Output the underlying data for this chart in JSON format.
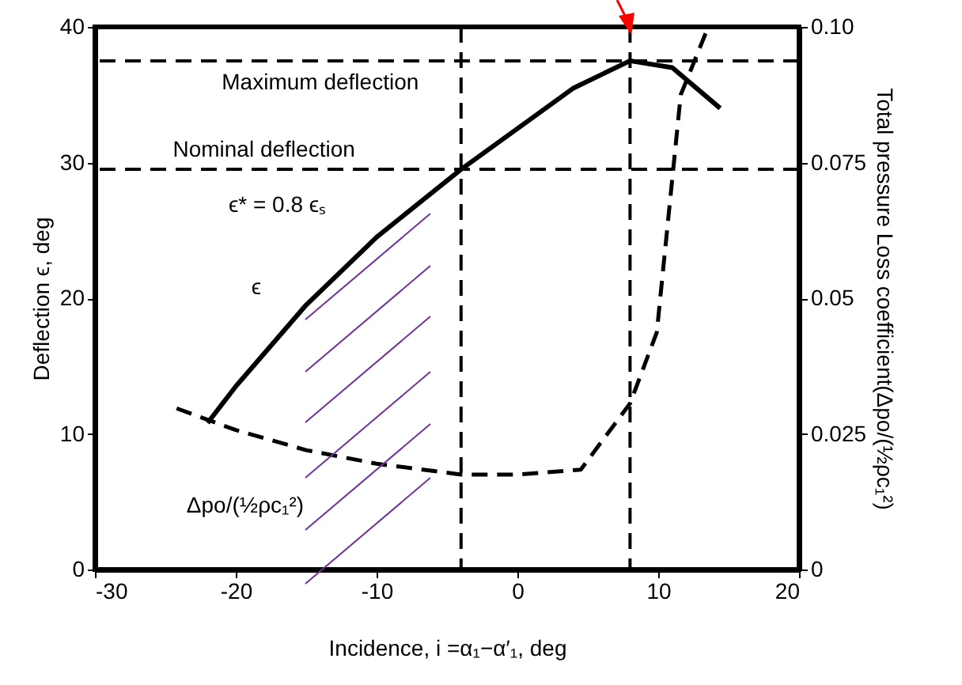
{
  "chart_data": {
    "type": "line",
    "xlabel": "Incidence, i =α₁−α′₁, deg",
    "ylabel": "Deflection ϵ, deg",
    "y2label": "Total pressure Loss coefficient(Δpo/(½ρc₁²)",
    "xlim": [
      -30,
      20
    ],
    "xticks": [
      -30,
      -20,
      -10,
      0,
      10,
      20
    ],
    "ylim": [
      0,
      40
    ],
    "yticks": [
      0,
      10,
      20,
      30,
      40
    ],
    "y2lim": [
      0,
      0.1
    ],
    "y2ticks": [
      0,
      0.025,
      0.05,
      0.075,
      {
        "value": 0.1,
        "label": "0.10"
      }
    ],
    "grid": false,
    "marker": "none",
    "series": [
      {
        "color": "#000000",
        "line_style": "solid",
        "x": [
          -22,
          -20,
          -15,
          -10,
          -4,
          0,
          4,
          8,
          11,
          14.4
        ],
        "values": [
          10.8,
          13.5,
          19.5,
          24.5,
          29.5,
          32.5,
          35.5,
          37.5,
          37,
          34
        ]
      },
      {
        "color": "#000000",
        "line_style": "dashed",
        "axis": "y2",
        "x": [
          -24.2,
          -20,
          -15,
          -10,
          -4,
          0,
          4.5,
          8,
          9.9,
          11.6,
          13.4
        ],
        "values": [
          0.0297,
          0.0257,
          0.022,
          0.0195,
          0.0175,
          0.0175,
          0.0184,
          0.0306,
          0.0437,
          0.0875,
          0.099
        ]
      }
    ],
    "ref_lines": [
      {
        "axis": "y",
        "value": 37.5,
        "label": "Maximum deflection",
        "line_style": "dashed"
      },
      {
        "axis": "y",
        "value": 29.5,
        "label": "Nominal deflection",
        "line_style": "dashed"
      },
      {
        "axis": "x",
        "value": -4,
        "line_style": "dashed"
      },
      {
        "axis": "x",
        "value": 8,
        "line_style": "dashed"
      }
    ],
    "annotations": [
      "ϵ* = 0.8 ϵₛ",
      "ϵ",
      "Δpo/(½ρc₁²)"
    ]
  }
}
